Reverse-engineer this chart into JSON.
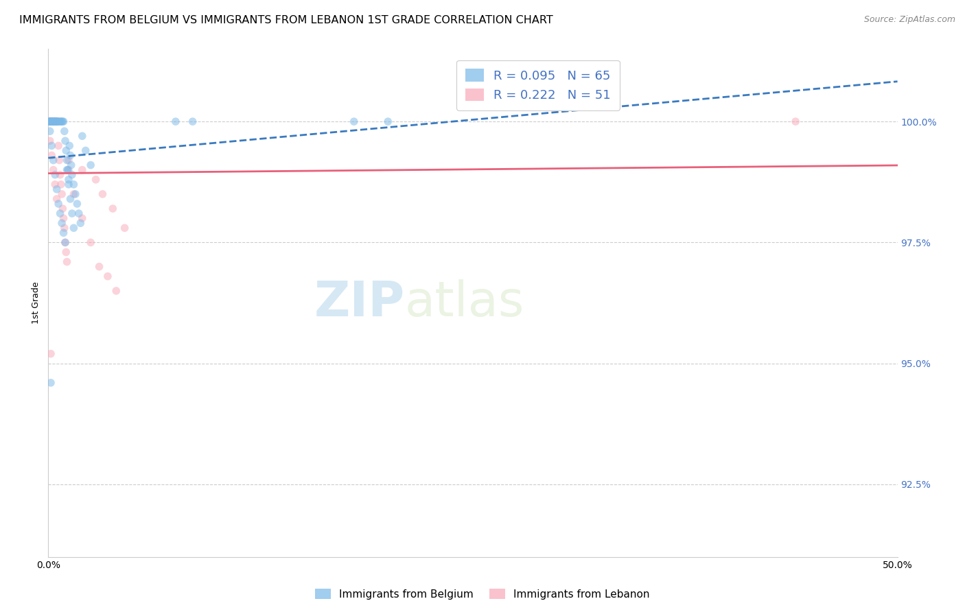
{
  "title": "IMMIGRANTS FROM BELGIUM VS IMMIGRANTS FROM LEBANON 1ST GRADE CORRELATION CHART",
  "source_text": "Source: ZipAtlas.com",
  "ylabel": "1st Grade",
  "ytick_values": [
    100.0,
    97.5,
    95.0,
    92.5
  ],
  "xlim": [
    0.0,
    50.0
  ],
  "ylim": [
    91.0,
    101.5
  ],
  "legend_belgium": "R = 0.095   N = 65",
  "legend_lebanon": "R = 0.222   N = 51",
  "belgium_color": "#7ab8e8",
  "lebanon_color": "#f9a8b8",
  "belgium_line_color": "#3a7abf",
  "lebanon_line_color": "#e8607a",
  "watermark_zip": "ZIP",
  "watermark_atlas": "atlas",
  "belgium_x": [
    0.05,
    0.08,
    0.1,
    0.12,
    0.15,
    0.18,
    0.2,
    0.22,
    0.25,
    0.28,
    0.3,
    0.32,
    0.35,
    0.38,
    0.4,
    0.42,
    0.45,
    0.48,
    0.5,
    0.55,
    0.6,
    0.65,
    0.7,
    0.75,
    0.8,
    0.85,
    0.9,
    0.95,
    1.0,
    1.05,
    1.1,
    1.15,
    1.2,
    1.25,
    1.3,
    1.35,
    1.4,
    1.5,
    1.6,
    1.7,
    1.8,
    1.9,
    2.0,
    2.2,
    2.5,
    0.1,
    0.2,
    0.3,
    0.4,
    0.5,
    0.6,
    0.7,
    0.8,
    0.9,
    1.0,
    1.1,
    1.2,
    1.3,
    1.4,
    1.5,
    7.5,
    8.5,
    18.0,
    20.0,
    0.15
  ],
  "belgium_y": [
    100.0,
    100.0,
    100.0,
    100.0,
    100.0,
    100.0,
    100.0,
    100.0,
    100.0,
    100.0,
    100.0,
    100.0,
    100.0,
    100.0,
    100.0,
    100.0,
    100.0,
    100.0,
    100.0,
    100.0,
    100.0,
    100.0,
    100.0,
    100.0,
    100.0,
    100.0,
    100.0,
    99.8,
    99.6,
    99.4,
    99.2,
    99.0,
    98.8,
    99.5,
    99.3,
    99.1,
    98.9,
    98.7,
    98.5,
    98.3,
    98.1,
    97.9,
    99.7,
    99.4,
    99.1,
    99.8,
    99.5,
    99.2,
    98.9,
    98.6,
    98.3,
    98.1,
    97.9,
    97.7,
    97.5,
    99.0,
    98.7,
    98.4,
    98.1,
    97.8,
    100.0,
    100.0,
    100.0,
    100.0,
    94.6
  ],
  "lebanon_x": [
    0.05,
    0.08,
    0.1,
    0.12,
    0.15,
    0.18,
    0.2,
    0.22,
    0.25,
    0.28,
    0.3,
    0.32,
    0.35,
    0.38,
    0.4,
    0.42,
    0.45,
    0.48,
    0.5,
    0.55,
    0.6,
    0.65,
    0.7,
    0.75,
    0.8,
    0.85,
    0.9,
    0.95,
    1.0,
    1.05,
    1.1,
    1.2,
    1.5,
    2.0,
    2.5,
    3.0,
    3.5,
    4.0,
    0.1,
    0.2,
    0.3,
    0.4,
    0.5,
    1.2,
    2.0,
    2.8,
    3.2,
    3.8,
    4.5,
    44.0,
    0.15
  ],
  "lebanon_y": [
    100.0,
    100.0,
    100.0,
    100.0,
    100.0,
    100.0,
    100.0,
    100.0,
    100.0,
    100.0,
    100.0,
    100.0,
    100.0,
    100.0,
    100.0,
    100.0,
    100.0,
    100.0,
    100.0,
    100.0,
    99.5,
    99.2,
    98.9,
    98.7,
    98.5,
    98.2,
    98.0,
    97.8,
    97.5,
    97.3,
    97.1,
    99.0,
    98.5,
    98.0,
    97.5,
    97.0,
    96.8,
    96.5,
    99.6,
    99.3,
    99.0,
    98.7,
    98.4,
    99.2,
    99.0,
    98.8,
    98.5,
    98.2,
    97.8,
    100.0,
    95.2
  ],
  "marker_size": 70,
  "title_fontsize": 11.5,
  "axis_label_fontsize": 9,
  "tick_fontsize": 10,
  "legend_fontsize": 13
}
